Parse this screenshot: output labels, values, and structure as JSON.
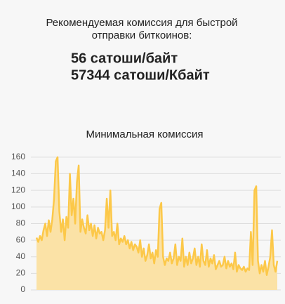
{
  "header": {
    "lines": [
      "Рекомендуемая комиссия для быстрой",
      "отправки биткоинов:"
    ],
    "fees": [
      "56 сатоши/байт",
      "57344 сатоши/Кбайт"
    ]
  },
  "chart_data": {
    "type": "area",
    "title": "Минимальная комиссия",
    "values": [
      63,
      58,
      65,
      60,
      72,
      80,
      65,
      84,
      70,
      85,
      110,
      155,
      160,
      95,
      70,
      85,
      60,
      88,
      75,
      140,
      90,
      110,
      80,
      130,
      150,
      70,
      85,
      75,
      68,
      90,
      72,
      80,
      65,
      78,
      62,
      75,
      68,
      70,
      60,
      72,
      110,
      75,
      120,
      65,
      70,
      60,
      80,
      55,
      62,
      58,
      65,
      55,
      60,
      50,
      58,
      48,
      55,
      52,
      45,
      60,
      40,
      50,
      35,
      42,
      55,
      38,
      45,
      32,
      48,
      40,
      98,
      105,
      40,
      30,
      38,
      35,
      45,
      32,
      38,
      55,
      30,
      40,
      35,
      62,
      28,
      40,
      30,
      45,
      32,
      38,
      50,
      30,
      40,
      28,
      55,
      35,
      30,
      48,
      28,
      38,
      32,
      42,
      25,
      30,
      35,
      28,
      30,
      40,
      26,
      35,
      28,
      32,
      25,
      45,
      22,
      30,
      26,
      24,
      28,
      22,
      26,
      24,
      70,
      30,
      120,
      125,
      35,
      20,
      30,
      22,
      35,
      18,
      28,
      40,
      72,
      30,
      22,
      35
    ],
    "color": "#fcc849",
    "fill": "#fbe2a6",
    "ylim": [
      0,
      165
    ],
    "yticks": [
      0,
      20,
      40,
      60,
      80,
      100,
      120,
      140,
      160
    ],
    "grid": true
  }
}
